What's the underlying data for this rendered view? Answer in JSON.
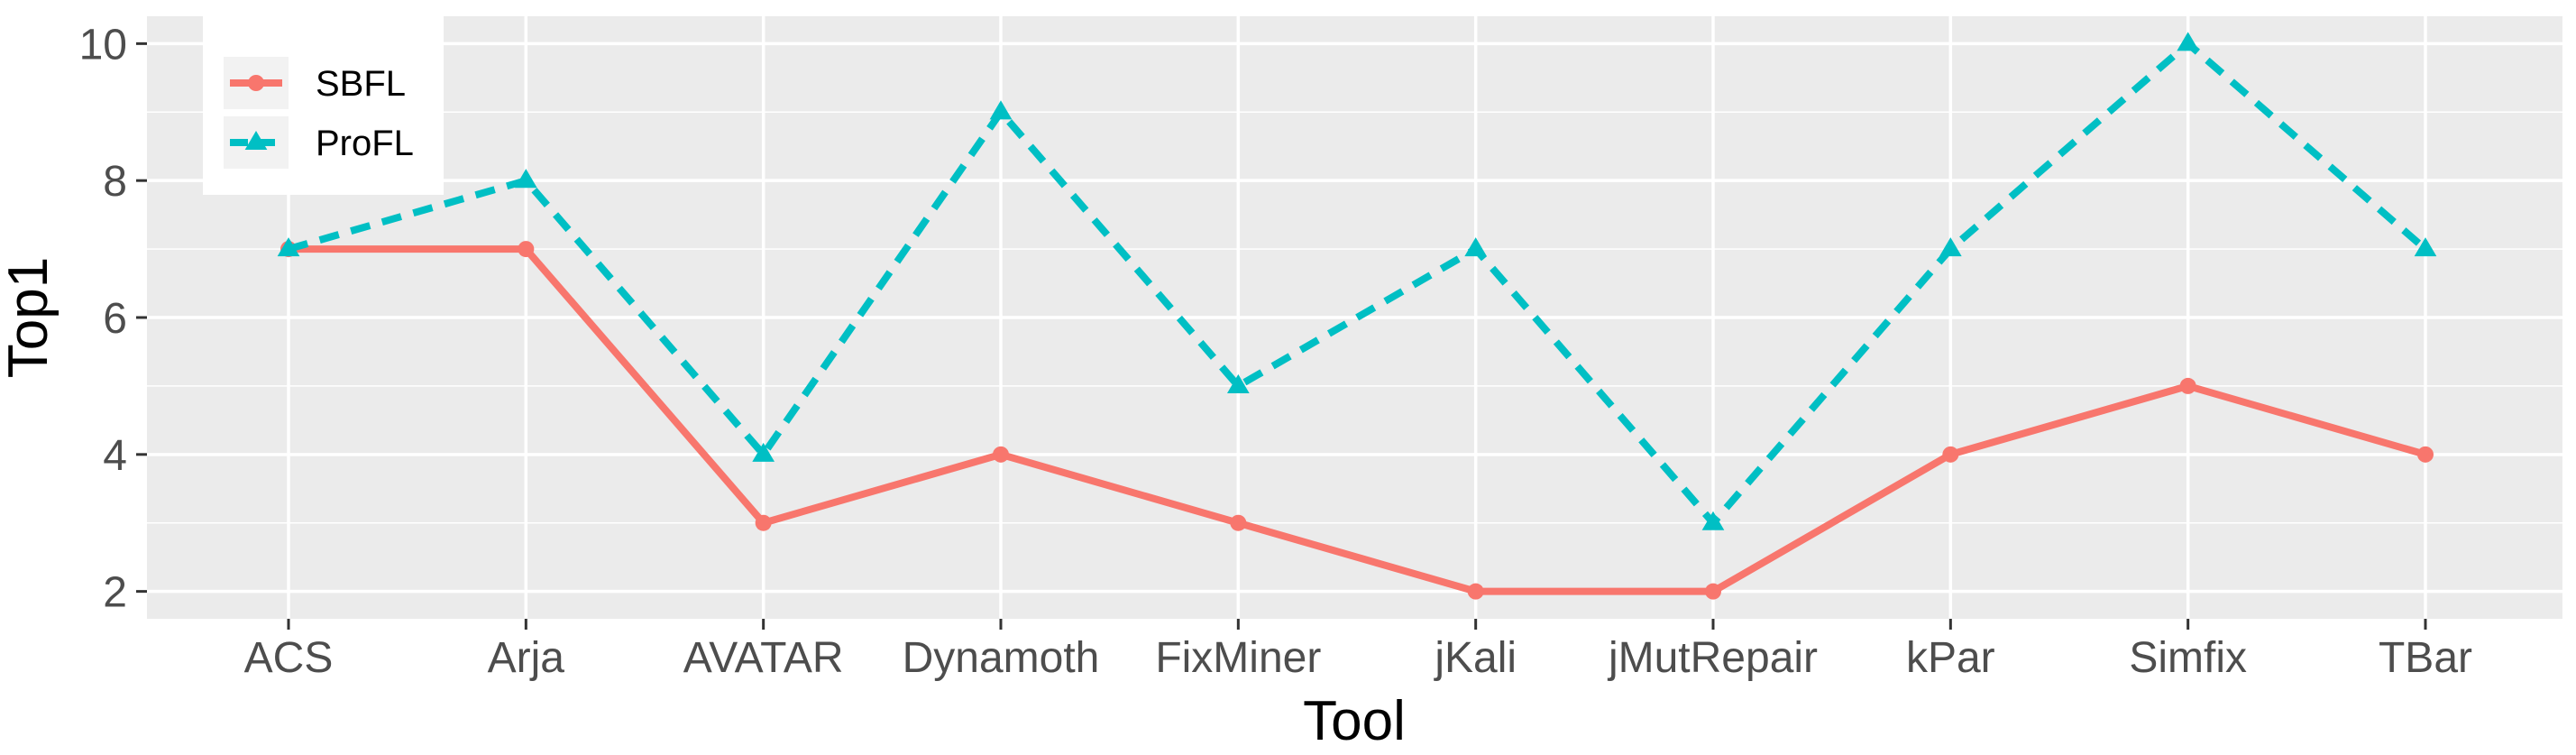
{
  "chart_data": {
    "type": "line",
    "xlabel": "Tool",
    "ylabel": "Top1",
    "categories": [
      "ACS",
      "Arja",
      "AVATAR",
      "Dynamoth",
      "FixMiner",
      "jKali",
      "jMutRepair",
      "kPar",
      "Simfix",
      "TBar"
    ],
    "ylim": [
      1.6,
      10.4
    ],
    "yticks": [
      2,
      4,
      6,
      8,
      10
    ],
    "grid": true,
    "legend_position": "top-left",
    "series": [
      {
        "name": "SBFL",
        "values": [
          7,
          7,
          3,
          4,
          3,
          2,
          2,
          4,
          5,
          4
        ],
        "color": "#F8766D",
        "marker": "circle",
        "line": "solid"
      },
      {
        "name": "ProFL",
        "values": [
          7,
          8,
          4,
          9,
          5,
          7,
          3,
          7,
          10,
          7
        ],
        "color": "#00BFC4",
        "marker": "triangle",
        "line": "dashed"
      }
    ]
  }
}
